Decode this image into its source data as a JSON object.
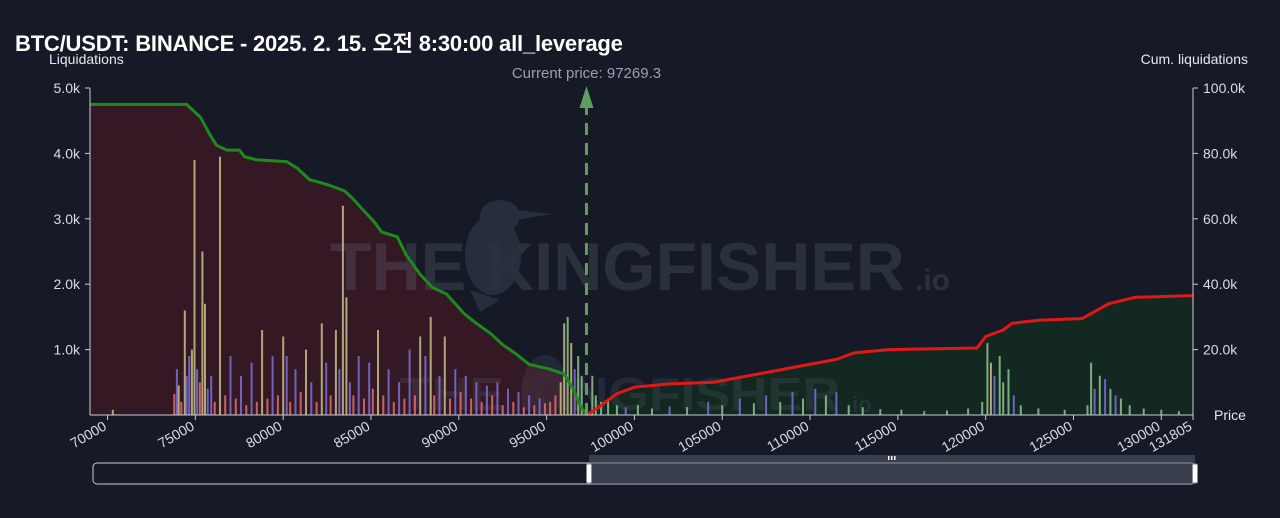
{
  "chart_data": {
    "type": "bar",
    "title": "BTC/USDT: BINANCE - 2025. 2. 15. 오전 8:30:00 all_leverage",
    "xlabel": "Price",
    "ylabel_left": "Liquidations",
    "ylabel_right": "Cum. liquidations",
    "xlim": [
      69000,
      131805
    ],
    "ylim_left": [
      0,
      5000
    ],
    "ylim_right": [
      0,
      100000
    ],
    "x_ticks": [
      "70000",
      "75000",
      "80000",
      "85000",
      "90000",
      "95000",
      "100000",
      "105000",
      "110000",
      "115000",
      "120000",
      "125000",
      "130000",
      "131805"
    ],
    "x_tick_values": [
      70000,
      75000,
      80000,
      85000,
      90000,
      95000,
      100000,
      105000,
      110000,
      115000,
      120000,
      125000,
      130000,
      131805
    ],
    "y_left_ticks": [
      "5.0k",
      "4.0k",
      "3.0k",
      "2.0k",
      "1.0k"
    ],
    "y_left_tick_values": [
      5000,
      4000,
      3000,
      2000,
      1000
    ],
    "y_right_ticks": [
      "100.0k",
      "80.0k",
      "60.0k",
      "40.0k",
      "20.0k"
    ],
    "y_right_tick_values": [
      100000,
      80000,
      60000,
      40000,
      20000
    ],
    "current_price": 97269.3,
    "current_price_label": "Current price: 97269.3",
    "grid": false,
    "colors": {
      "background": "#161a26",
      "cum_long": "#1e8a1e",
      "cum_short": "#e01818",
      "fill_long": "#3a1a26",
      "fill_short": "#142a22",
      "current_price_line": "#5f9e5f",
      "bar_purple": "#7b70d8",
      "bar_yellow": "#c8c088",
      "bar_pink": "#e07070",
      "bar_green": "#8fc48f"
    },
    "cum_long_series": [
      [
        69000,
        95000
      ],
      [
        74500,
        95000
      ],
      [
        75300,
        91000
      ],
      [
        75800,
        86000
      ],
      [
        76200,
        82500
      ],
      [
        76800,
        81000
      ],
      [
        77500,
        81000
      ],
      [
        77800,
        79000
      ],
      [
        78500,
        78000
      ],
      [
        80200,
        77500
      ],
      [
        80800,
        75500
      ],
      [
        81500,
        72000
      ],
      [
        82500,
        70500
      ],
      [
        83500,
        68500
      ],
      [
        84000,
        66000
      ],
      [
        84500,
        63000
      ],
      [
        85200,
        59000
      ],
      [
        85600,
        56000
      ],
      [
        86500,
        54500
      ],
      [
        87000,
        49000
      ],
      [
        87800,
        43000
      ],
      [
        88500,
        39000
      ],
      [
        89300,
        37000
      ],
      [
        89800,
        34000
      ],
      [
        90300,
        31000
      ],
      [
        91000,
        28000
      ],
      [
        91800,
        25000
      ],
      [
        92500,
        21500
      ],
      [
        93300,
        18500
      ],
      [
        94000,
        15500
      ],
      [
        95200,
        14000
      ],
      [
        96000,
        12500
      ],
      [
        96500,
        8000
      ],
      [
        96900,
        3000
      ],
      [
        97269,
        0
      ]
    ],
    "cum_short_series": [
      [
        97269,
        0
      ],
      [
        98000,
        2500
      ],
      [
        99000,
        6500
      ],
      [
        100000,
        8500
      ],
      [
        102000,
        9500
      ],
      [
        104500,
        10000
      ],
      [
        106000,
        11500
      ],
      [
        108000,
        13500
      ],
      [
        109500,
        15000
      ],
      [
        111500,
        17000
      ],
      [
        112500,
        19000
      ],
      [
        114500,
        20000
      ],
      [
        119500,
        20500
      ],
      [
        120000,
        24000
      ],
      [
        121000,
        26000
      ],
      [
        121500,
        28000
      ],
      [
        123000,
        29000
      ],
      [
        125500,
        29500
      ],
      [
        126000,
        31000
      ],
      [
        127000,
        34000
      ],
      [
        128500,
        36000
      ],
      [
        131805,
        36500
      ]
    ],
    "bars": [
      {
        "x": 70300,
        "v": 80,
        "c": "bar_yellow"
      },
      {
        "x": 73800,
        "v": 320,
        "c": "bar_pink"
      },
      {
        "x": 73950,
        "v": 700,
        "c": "bar_purple"
      },
      {
        "x": 74050,
        "v": 450,
        "c": "bar_yellow"
      },
      {
        "x": 74200,
        "v": 200,
        "c": "bar_pink"
      },
      {
        "x": 74400,
        "v": 1600,
        "c": "bar_yellow"
      },
      {
        "x": 74500,
        "v": 600,
        "c": "bar_purple"
      },
      {
        "x": 74650,
        "v": 900,
        "c": "bar_purple"
      },
      {
        "x": 74800,
        "v": 1000,
        "c": "bar_yellow"
      },
      {
        "x": 74950,
        "v": 3900,
        "c": "bar_yellow"
      },
      {
        "x": 75100,
        "v": 700,
        "c": "bar_purple"
      },
      {
        "x": 75250,
        "v": 500,
        "c": "bar_pink"
      },
      {
        "x": 75400,
        "v": 2500,
        "c": "bar_yellow"
      },
      {
        "x": 75550,
        "v": 1700,
        "c": "bar_yellow"
      },
      {
        "x": 75700,
        "v": 400,
        "c": "bar_purple"
      },
      {
        "x": 75900,
        "v": 600,
        "c": "bar_purple"
      },
      {
        "x": 76100,
        "v": 200,
        "c": "bar_pink"
      },
      {
        "x": 76400,
        "v": 3950,
        "c": "bar_yellow"
      },
      {
        "x": 76700,
        "v": 300,
        "c": "bar_pink"
      },
      {
        "x": 77000,
        "v": 900,
        "c": "bar_purple"
      },
      {
        "x": 77300,
        "v": 250,
        "c": "bar_pink"
      },
      {
        "x": 77600,
        "v": 600,
        "c": "bar_purple"
      },
      {
        "x": 77900,
        "v": 150,
        "c": "bar_pink"
      },
      {
        "x": 78200,
        "v": 800,
        "c": "bar_purple"
      },
      {
        "x": 78500,
        "v": 200,
        "c": "bar_pink"
      },
      {
        "x": 78800,
        "v": 1300,
        "c": "bar_yellow"
      },
      {
        "x": 79100,
        "v": 250,
        "c": "bar_pink"
      },
      {
        "x": 79400,
        "v": 900,
        "c": "bar_purple"
      },
      {
        "x": 79700,
        "v": 300,
        "c": "bar_pink"
      },
      {
        "x": 80000,
        "v": 1200,
        "c": "bar_yellow"
      },
      {
        "x": 80200,
        "v": 900,
        "c": "bar_purple"
      },
      {
        "x": 80400,
        "v": 200,
        "c": "bar_pink"
      },
      {
        "x": 80700,
        "v": 700,
        "c": "bar_purple"
      },
      {
        "x": 81000,
        "v": 350,
        "c": "bar_pink"
      },
      {
        "x": 81300,
        "v": 1000,
        "c": "bar_yellow"
      },
      {
        "x": 81600,
        "v": 500,
        "c": "bar_purple"
      },
      {
        "x": 81900,
        "v": 200,
        "c": "bar_pink"
      },
      {
        "x": 82200,
        "v": 1400,
        "c": "bar_yellow"
      },
      {
        "x": 82450,
        "v": 800,
        "c": "bar_purple"
      },
      {
        "x": 82700,
        "v": 300,
        "c": "bar_pink"
      },
      {
        "x": 83000,
        "v": 1300,
        "c": "bar_yellow"
      },
      {
        "x": 83200,
        "v": 700,
        "c": "bar_purple"
      },
      {
        "x": 83400,
        "v": 3200,
        "c": "bar_yellow"
      },
      {
        "x": 83600,
        "v": 1800,
        "c": "bar_yellow"
      },
      {
        "x": 83800,
        "v": 500,
        "c": "bar_purple"
      },
      {
        "x": 84000,
        "v": 300,
        "c": "bar_pink"
      },
      {
        "x": 84300,
        "v": 900,
        "c": "bar_purple"
      },
      {
        "x": 84600,
        "v": 250,
        "c": "bar_pink"
      },
      {
        "x": 84900,
        "v": 800,
        "c": "bar_purple"
      },
      {
        "x": 85100,
        "v": 400,
        "c": "bar_pink"
      },
      {
        "x": 85400,
        "v": 1300,
        "c": "bar_yellow"
      },
      {
        "x": 85700,
        "v": 300,
        "c": "bar_pink"
      },
      {
        "x": 86000,
        "v": 700,
        "c": "bar_purple"
      },
      {
        "x": 86300,
        "v": 200,
        "c": "bar_pink"
      },
      {
        "x": 86600,
        "v": 500,
        "c": "bar_purple"
      },
      {
        "x": 86900,
        "v": 250,
        "c": "bar_pink"
      },
      {
        "x": 87200,
        "v": 1000,
        "c": "bar_purple"
      },
      {
        "x": 87500,
        "v": 300,
        "c": "bar_pink"
      },
      {
        "x": 87800,
        "v": 1200,
        "c": "bar_yellow"
      },
      {
        "x": 88100,
        "v": 900,
        "c": "bar_purple"
      },
      {
        "x": 88400,
        "v": 1500,
        "c": "bar_yellow"
      },
      {
        "x": 88600,
        "v": 300,
        "c": "bar_pink"
      },
      {
        "x": 88900,
        "v": 600,
        "c": "bar_purple"
      },
      {
        "x": 89200,
        "v": 1200,
        "c": "bar_yellow"
      },
      {
        "x": 89500,
        "v": 250,
        "c": "bar_pink"
      },
      {
        "x": 89800,
        "v": 700,
        "c": "bar_purple"
      },
      {
        "x": 90100,
        "v": 350,
        "c": "bar_pink"
      },
      {
        "x": 90400,
        "v": 600,
        "c": "bar_purple"
      },
      {
        "x": 90700,
        "v": 250,
        "c": "bar_pink"
      },
      {
        "x": 91000,
        "v": 500,
        "c": "bar_purple"
      },
      {
        "x": 91300,
        "v": 200,
        "c": "bar_pink"
      },
      {
        "x": 91600,
        "v": 450,
        "c": "bar_purple"
      },
      {
        "x": 91900,
        "v": 300,
        "c": "bar_pink"
      },
      {
        "x": 92200,
        "v": 500,
        "c": "bar_purple"
      },
      {
        "x": 92500,
        "v": 150,
        "c": "bar_pink"
      },
      {
        "x": 92800,
        "v": 400,
        "c": "bar_purple"
      },
      {
        "x": 93100,
        "v": 200,
        "c": "bar_pink"
      },
      {
        "x": 93400,
        "v": 350,
        "c": "bar_purple"
      },
      {
        "x": 93700,
        "v": 120,
        "c": "bar_pink"
      },
      {
        "x": 94000,
        "v": 300,
        "c": "bar_purple"
      },
      {
        "x": 94300,
        "v": 150,
        "c": "bar_pink"
      },
      {
        "x": 94600,
        "v": 250,
        "c": "bar_purple"
      },
      {
        "x": 94900,
        "v": 180,
        "c": "bar_pink"
      },
      {
        "x": 95200,
        "v": 200,
        "c": "bar_pink"
      },
      {
        "x": 95500,
        "v": 300,
        "c": "bar_pink"
      },
      {
        "x": 95800,
        "v": 500,
        "c": "bar_yellow"
      },
      {
        "x": 96000,
        "v": 1400,
        "c": "bar_yellow"
      },
      {
        "x": 96200,
        "v": 1500,
        "c": "bar_green"
      },
      {
        "x": 96400,
        "v": 1100,
        "c": "bar_yellow"
      },
      {
        "x": 96600,
        "v": 700,
        "c": "bar_purple"
      },
      {
        "x": 96800,
        "v": 900,
        "c": "bar_green"
      },
      {
        "x": 97000,
        "v": 600,
        "c": "bar_green"
      },
      {
        "x": 97600,
        "v": 600,
        "c": "bar_green"
      },
      {
        "x": 97800,
        "v": 300,
        "c": "bar_green"
      },
      {
        "x": 98100,
        "v": 200,
        "c": "bar_green"
      },
      {
        "x": 98500,
        "v": 250,
        "c": "bar_green"
      },
      {
        "x": 99000,
        "v": 150,
        "c": "bar_green"
      },
      {
        "x": 99500,
        "v": 120,
        "c": "bar_purple"
      },
      {
        "x": 100200,
        "v": 150,
        "c": "bar_green"
      },
      {
        "x": 101000,
        "v": 100,
        "c": "bar_green"
      },
      {
        "x": 102000,
        "v": 130,
        "c": "bar_purple"
      },
      {
        "x": 103000,
        "v": 120,
        "c": "bar_green"
      },
      {
        "x": 104200,
        "v": 200,
        "c": "bar_purple"
      },
      {
        "x": 105000,
        "v": 150,
        "c": "bar_green"
      },
      {
        "x": 106000,
        "v": 250,
        "c": "bar_purple"
      },
      {
        "x": 106800,
        "v": 180,
        "c": "bar_green"
      },
      {
        "x": 107500,
        "v": 300,
        "c": "bar_purple"
      },
      {
        "x": 108300,
        "v": 200,
        "c": "bar_green"
      },
      {
        "x": 109000,
        "v": 350,
        "c": "bar_purple"
      },
      {
        "x": 109600,
        "v": 250,
        "c": "bar_green"
      },
      {
        "x": 110300,
        "v": 400,
        "c": "bar_purple"
      },
      {
        "x": 110900,
        "v": 300,
        "c": "bar_green"
      },
      {
        "x": 111500,
        "v": 350,
        "c": "bar_purple"
      },
      {
        "x": 112200,
        "v": 150,
        "c": "bar_green"
      },
      {
        "x": 113000,
        "v": 120,
        "c": "bar_green"
      },
      {
        "x": 114000,
        "v": 90,
        "c": "bar_green"
      },
      {
        "x": 115200,
        "v": 80,
        "c": "bar_green"
      },
      {
        "x": 116500,
        "v": 60,
        "c": "bar_green"
      },
      {
        "x": 117800,
        "v": 70,
        "c": "bar_green"
      },
      {
        "x": 119000,
        "v": 100,
        "c": "bar_green"
      },
      {
        "x": 119800,
        "v": 200,
        "c": "bar_green"
      },
      {
        "x": 120100,
        "v": 1100,
        "c": "bar_green"
      },
      {
        "x": 120300,
        "v": 800,
        "c": "bar_yellow"
      },
      {
        "x": 120500,
        "v": 600,
        "c": "bar_purple"
      },
      {
        "x": 120800,
        "v": 900,
        "c": "bar_green"
      },
      {
        "x": 121000,
        "v": 500,
        "c": "bar_green"
      },
      {
        "x": 121300,
        "v": 700,
        "c": "bar_green"
      },
      {
        "x": 121600,
        "v": 300,
        "c": "bar_purple"
      },
      {
        "x": 122000,
        "v": 150,
        "c": "bar_green"
      },
      {
        "x": 123000,
        "v": 100,
        "c": "bar_green"
      },
      {
        "x": 124500,
        "v": 80,
        "c": "bar_green"
      },
      {
        "x": 125800,
        "v": 150,
        "c": "bar_green"
      },
      {
        "x": 126000,
        "v": 800,
        "c": "bar_green"
      },
      {
        "x": 126200,
        "v": 400,
        "c": "bar_purple"
      },
      {
        "x": 126500,
        "v": 600,
        "c": "bar_green"
      },
      {
        "x": 126800,
        "v": 550,
        "c": "bar_purple"
      },
      {
        "x": 127100,
        "v": 400,
        "c": "bar_green"
      },
      {
        "x": 127400,
        "v": 300,
        "c": "bar_purple"
      },
      {
        "x": 127700,
        "v": 250,
        "c": "bar_green"
      },
      {
        "x": 128200,
        "v": 150,
        "c": "bar_green"
      },
      {
        "x": 129000,
        "v": 100,
        "c": "bar_green"
      },
      {
        "x": 130000,
        "v": 80,
        "c": "bar_green"
      },
      {
        "x": 131000,
        "v": 60,
        "c": "bar_green"
      }
    ]
  },
  "watermark": {
    "brand_main": "THE KINGFISHER",
    "brand_suffix": ".io"
  },
  "range_selector": {
    "from": 97269,
    "to": 131805,
    "grip_icon": "grip-lines-icon"
  }
}
